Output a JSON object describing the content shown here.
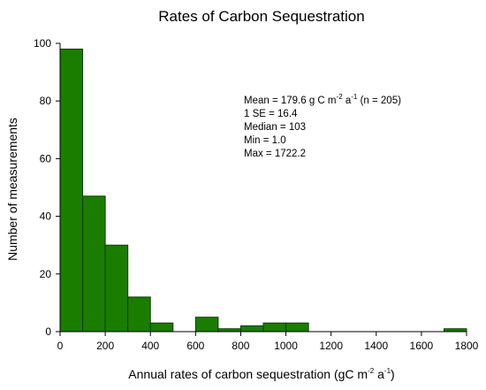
{
  "chart_data": {
    "type": "bar",
    "title": "Rates of Carbon Sequestration",
    "xlabel": {
      "base": "Annual rates of carbon sequestration (gC m",
      "sup1": "-2",
      "mid": " a",
      "sup2": "-1",
      "end": ")"
    },
    "ylabel": "Number of measurements",
    "xlim": [
      0,
      1800
    ],
    "ylim": [
      0,
      100
    ],
    "x_ticks": [
      0,
      200,
      400,
      600,
      800,
      1000,
      1200,
      1400,
      1600,
      1800
    ],
    "y_ticks": [
      0,
      20,
      40,
      60,
      80,
      100
    ],
    "bin_width": 100,
    "bins": [
      {
        "start": 0,
        "value": 98
      },
      {
        "start": 100,
        "value": 47
      },
      {
        "start": 200,
        "value": 30
      },
      {
        "start": 300,
        "value": 12
      },
      {
        "start": 400,
        "value": 3
      },
      {
        "start": 500,
        "value": 0
      },
      {
        "start": 600,
        "value": 5
      },
      {
        "start": 700,
        "value": 1
      },
      {
        "start": 800,
        "value": 2
      },
      {
        "start": 900,
        "value": 3
      },
      {
        "start": 1000,
        "value": 3
      },
      {
        "start": 1700,
        "value": 1
      }
    ],
    "bar_color": "#1a7d00",
    "bar_edge_color": "#0a3d00",
    "grid": false,
    "legend": "none",
    "stats": {
      "mean": {
        "prefix": "Mean = 179.6 g C m",
        "sup1": "-2",
        "mid": " a",
        "sup2": "-1",
        "suffix": " (n = 205)"
      },
      "se": "1 SE = 16.4",
      "median": "Median = 103",
      "min": "Min = 1.0",
      "max": "Max = 1722.2"
    }
  }
}
